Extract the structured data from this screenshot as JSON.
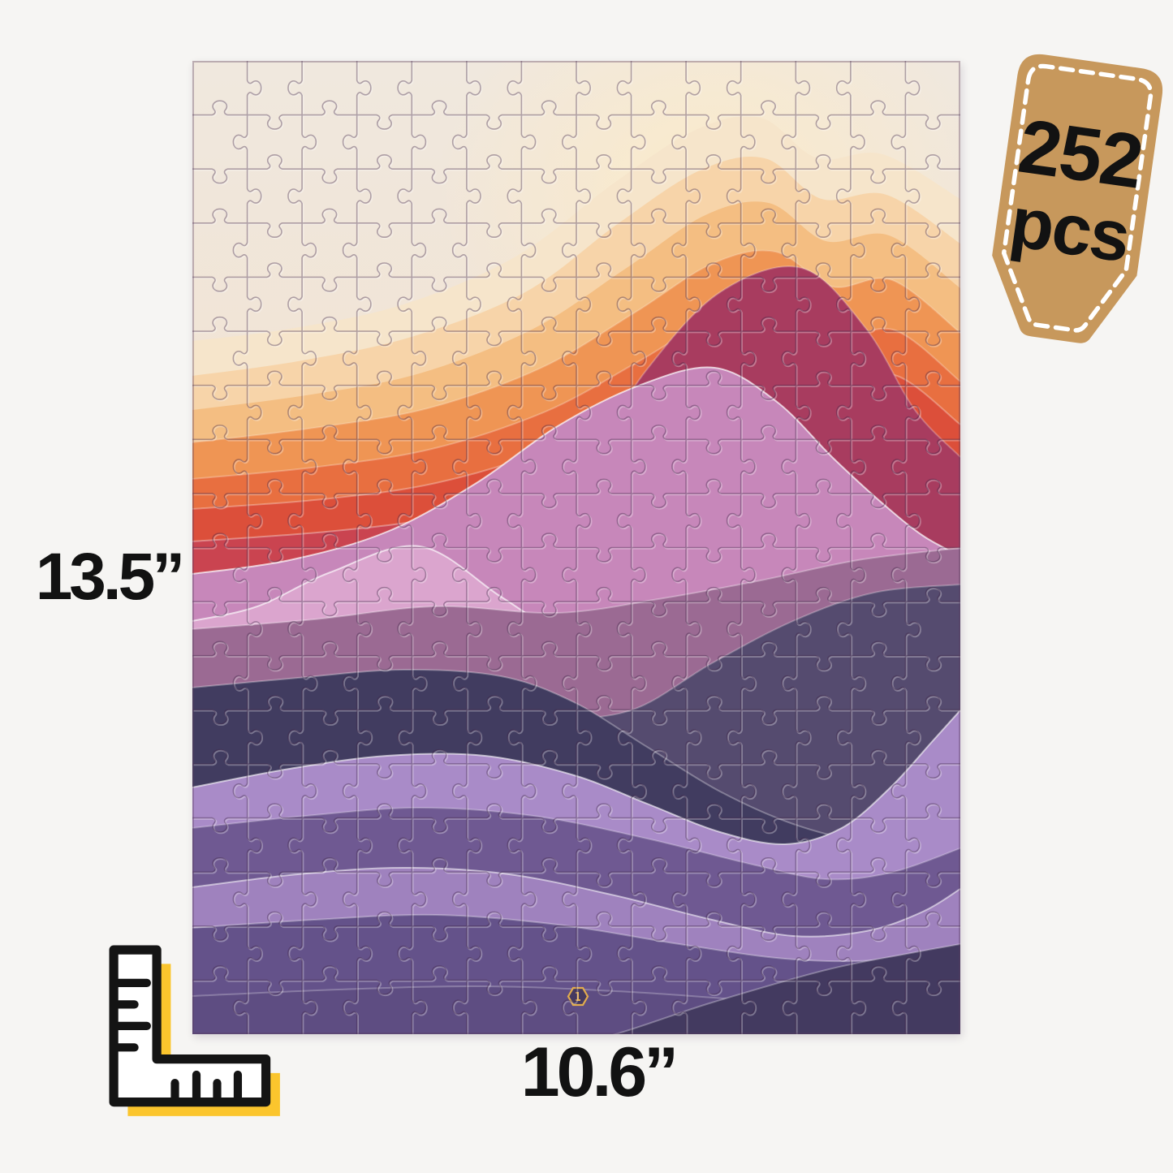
{
  "product_image": {
    "background": "#F6F5F3",
    "badge": {
      "count": "252",
      "unit": "pcs",
      "bg_color": "#C7985C",
      "dash_color": "#FFFFFF",
      "text_color": "#121212"
    },
    "dimensions": {
      "height_label": "13.5”",
      "width_label": "10.6”",
      "text_color": "#121212"
    },
    "ruler_icon": {
      "name": "ruler-square-icon",
      "fill_color": "#FBC52D",
      "line_color": "#141414"
    },
    "puzzle": {
      "description": "abstract sunset mountain waves jigsaw puzzle",
      "pieces": {
        "cols": 14,
        "rows": 18,
        "total": 252
      },
      "logo_icon": "brand-hexagon-logo",
      "logo_color": "#E2AC4D",
      "line_dark": "rgba(62,36,70,0.38)",
      "line_light": "rgba(255,255,255,0.30)",
      "palette": {
        "sky_top": "#F0E8DE",
        "sky_bottom": "#F3DCC4",
        "glow": "#FCEBC9",
        "pale_cream": "#F6E5CB",
        "pale_peach": "#F7D4A9",
        "gold": "#F4BE82",
        "orange": "#EF9554",
        "deep_orange": "#E86F40",
        "red_orange": "#DC4F3A",
        "crimson": "#CA4450",
        "maroon": "#A83C5F",
        "pink": "#C787BA",
        "light_pink": "#DBA5CE",
        "mauve": "#9B6A93",
        "dark_slate": "#554B6F",
        "dark_navy": "#413C60",
        "bright_lavender": "#A98BC8",
        "purple": "#6F5992",
        "lavender_wave": "#9F82BE",
        "deep_purple": "#64528A",
        "bottom_purple": "#5E4D82",
        "dark_corner": "#433A60"
      }
    }
  }
}
